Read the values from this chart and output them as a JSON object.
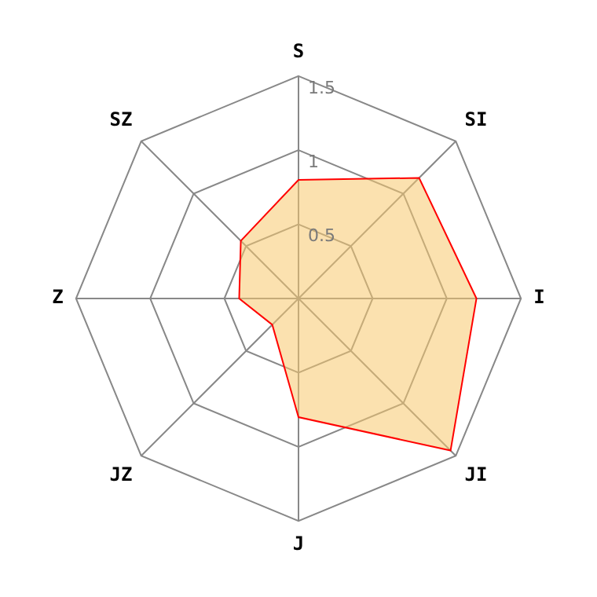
{
  "chart_data": {
    "type": "radar",
    "categories": [
      "S",
      "SI",
      "I",
      "JI",
      "J",
      "JZ",
      "Z",
      "SZ"
    ],
    "series": [
      {
        "color": "#ff0000",
        "values": [
          0.8,
          1.15,
          1.2,
          1.45,
          0.8,
          0.25,
          0.4,
          0.55
        ]
      }
    ],
    "ylim": [
      0,
      1.5
    ],
    "yticks": [
      0.5,
      1,
      1.5
    ],
    "legend": false,
    "marker": "none"
  }
}
